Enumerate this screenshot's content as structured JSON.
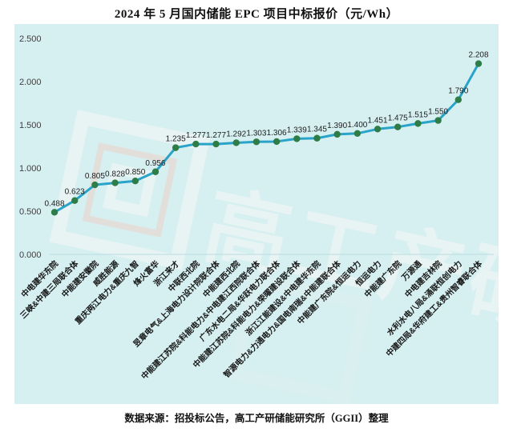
{
  "title": "2024 年 5 月国内储能 EPC 项目中标报价（元/Wh）",
  "source_note": "数据来源：招投标公告，高工产研储能研究所（GGII）整理",
  "watermark": {
    "text": "高工产研",
    "logo": "square-spiral-logo"
  },
  "chart_data": {
    "type": "line",
    "title": "2024 年 5 月国内储能 EPC 项目中标报价（元/Wh）",
    "unit": "元/Wh",
    "xlabel": "",
    "ylabel": "",
    "ylim": [
      0,
      2.5
    ],
    "y_tick_labels": [
      "0.000",
      "0.500",
      "1.000",
      "1.500",
      "2.000",
      "2.500"
    ],
    "grid": false,
    "legend": "none",
    "categories": [
      "中电建华东院",
      "三峡&中建三局联合体",
      "中能建安徽院",
      "威胜能源",
      "重庆两江电力&重庆九智",
      "烽火富华",
      "浙江来才",
      "中联西北院",
      "昱章电气&上海电力设计院联合体",
      "中能建西北院",
      "中能建江苏院&科能电力&中电建江西院联合体",
      "广东水电二局&华跃电力联合体",
      "中能建江苏院&科能电力&荣曜建设联合体",
      "浙江江能建设&中电建华东院",
      "智源电力&力通电力&国电南瑞&中能建联合体",
      "中能建广东院&恒运电力",
      "恒运电力",
      "中能建广东院",
      "万源通",
      "中电建吉林院",
      "水利水电八局&涌联恒创电力",
      "中建四局&华府建工&贵州智睿联合体"
    ],
    "values": [
      0.488,
      0.623,
      0.805,
      0.828,
      0.85,
      0.956,
      1.235,
      1.277,
      1.277,
      1.292,
      1.303,
      1.306,
      1.339,
      1.345,
      1.39,
      1.4,
      1.451,
      1.475,
      1.515,
      1.55,
      1.79,
      2.208
    ],
    "colors": {
      "line": "#2aa3c9",
      "marker": "#2e7c46",
      "plot_bg": "#d6eff1",
      "value_label": "#1d1d1d",
      "axis_label": "#3f3f3f",
      "category_label": "#161616",
      "axis_line": "#b9dde0",
      "watermark": "#eef6f4",
      "watermark_accent": "#f2cabe"
    }
  }
}
